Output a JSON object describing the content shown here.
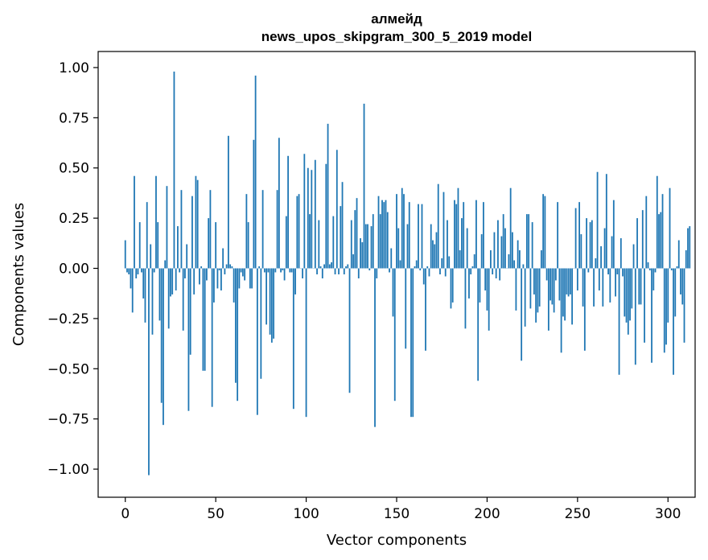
{
  "chart_data": {
    "type": "bar",
    "title": "алмейд",
    "subtitle": "news_upos_skipgram_300_5_2019 model",
    "xlabel": "Vector components",
    "ylabel": "Components values",
    "xlim": [
      -15,
      315
    ],
    "ylim": [
      -1.14,
      1.08
    ],
    "xticks": [
      0,
      50,
      100,
      150,
      200,
      250,
      300
    ],
    "xtick_labels": [
      "0",
      "50",
      "100",
      "150",
      "200",
      "250",
      "300"
    ],
    "yticks": [
      1.0,
      0.75,
      0.5,
      0.25,
      0.0,
      -0.25,
      -0.5,
      -0.75,
      -1.0
    ],
    "ytick_labels": [
      "1.00",
      "0.75",
      "0.50",
      "0.25",
      "0.00",
      "−0.25",
      "−0.50",
      "−0.75",
      "−1.00"
    ],
    "grid": false,
    "bar_color": "#1f77b4",
    "values": [
      0.14,
      -0.02,
      -0.03,
      -0.1,
      -0.22,
      0.46,
      -0.05,
      -0.03,
      0.23,
      -0.02,
      -0.15,
      -0.27,
      0.33,
      -1.03,
      0.12,
      -0.33,
      -0.02,
      0.46,
      0.23,
      -0.26,
      -0.67,
      -0.78,
      0.04,
      0.41,
      -0.3,
      -0.14,
      -0.13,
      0.98,
      -0.11,
      0.21,
      -0.02,
      0.39,
      -0.31,
      -0.05,
      0.12,
      -0.71,
      -0.43,
      0.36,
      -0.13,
      0.46,
      0.44,
      -0.08,
      0.01,
      -0.51,
      -0.51,
      -0.06,
      0.25,
      0.39,
      -0.69,
      -0.17,
      0.23,
      -0.1,
      -0.01,
      -0.11,
      0.1,
      -0.03,
      0.02,
      0.66,
      0.02,
      0.01,
      -0.17,
      -0.57,
      -0.66,
      -0.1,
      -0.02,
      -0.04,
      -0.06,
      0.37,
      0.23,
      -0.1,
      -0.1,
      0.64,
      0.96,
      -0.73,
      0.01,
      -0.55,
      0.39,
      -0.02,
      -0.28,
      -0.02,
      -0.33,
      -0.37,
      -0.35,
      -0.02,
      0.39,
      0.65,
      -0.02,
      -0.01,
      -0.06,
      0.26,
      0.56,
      -0.02,
      -0.02,
      -0.7,
      -0.13,
      0.36,
      0.37,
      0.0,
      -0.05,
      0.57,
      -0.74,
      0.5,
      0.27,
      0.49,
      0.0,
      0.54,
      -0.03,
      0.24,
      0.01,
      -0.05,
      0.02,
      0.52,
      0.72,
      0.02,
      0.03,
      0.26,
      -0.03,
      0.59,
      -0.03,
      0.31,
      0.43,
      -0.03,
      0.01,
      0.02,
      -0.62,
      0.24,
      0.07,
      0.29,
      0.35,
      -0.05,
      0.15,
      0.13,
      0.82,
      0.22,
      0.22,
      -0.01,
      0.21,
      0.27,
      -0.79,
      -0.05,
      0.36,
      0.27,
      0.34,
      0.33,
      0.34,
      0.28,
      -0.02,
      0.1,
      -0.24,
      -0.66,
      0.37,
      0.2,
      0.04,
      0.4,
      0.37,
      -0.4,
      0.22,
      0.33,
      -0.74,
      -0.74,
      0.01,
      0.04,
      0.32,
      -0.01,
      0.32,
      -0.08,
      -0.41,
      0.01,
      -0.04,
      0.22,
      0.14,
      0.12,
      0.18,
      0.42,
      -0.03,
      0.05,
      0.38,
      -0.04,
      0.24,
      0.06,
      -0.2,
      -0.17,
      0.34,
      0.32,
      0.4,
      0.09,
      0.25,
      0.33,
      -0.3,
      0.2,
      -0.15,
      -0.03,
      0.01,
      0.07,
      0.34,
      -0.56,
      -0.17,
      0.17,
      0.33,
      -0.11,
      -0.21,
      -0.31,
      0.09,
      -0.03,
      0.18,
      -0.05,
      0.24,
      -0.06,
      0.16,
      0.27,
      0.2,
      0.0,
      0.07,
      0.4,
      0.18,
      0.04,
      -0.21,
      0.14,
      0.09,
      -0.46,
      0.02,
      -0.29,
      0.27,
      0.27,
      -0.2,
      0.23,
      -0.13,
      -0.27,
      -0.22,
      -0.19,
      0.09,
      0.37,
      0.36,
      -0.06,
      -0.31,
      -0.16,
      -0.18,
      -0.22,
      -0.06,
      0.33,
      -0.16,
      -0.42,
      -0.24,
      -0.26,
      -0.13,
      -0.14,
      -0.13,
      -0.28,
      0.0,
      0.3,
      -0.11,
      0.33,
      0.17,
      -0.19,
      -0.41,
      0.25,
      -0.02,
      0.23,
      0.24,
      -0.19,
      0.05,
      0.48,
      -0.11,
      0.11,
      -0.19,
      0.2,
      0.47,
      -0.03,
      -0.17,
      0.16,
      0.34,
      -0.14,
      -0.03,
      -0.53,
      0.15,
      -0.04,
      -0.24,
      -0.27,
      -0.33,
      -0.26,
      -0.2,
      0.12,
      -0.48,
      0.25,
      -0.18,
      -0.18,
      0.29,
      -0.37,
      0.36,
      0.03,
      -0.01,
      -0.47,
      -0.11,
      -0.02,
      0.46,
      0.27,
      0.28,
      0.37,
      -0.42,
      -0.38,
      -0.27,
      0.4,
      -0.01,
      -0.53,
      -0.24,
      0.01,
      0.14,
      -0.13,
      -0.18,
      -0.37,
      0.09,
      0.2,
      0.21
    ]
  }
}
